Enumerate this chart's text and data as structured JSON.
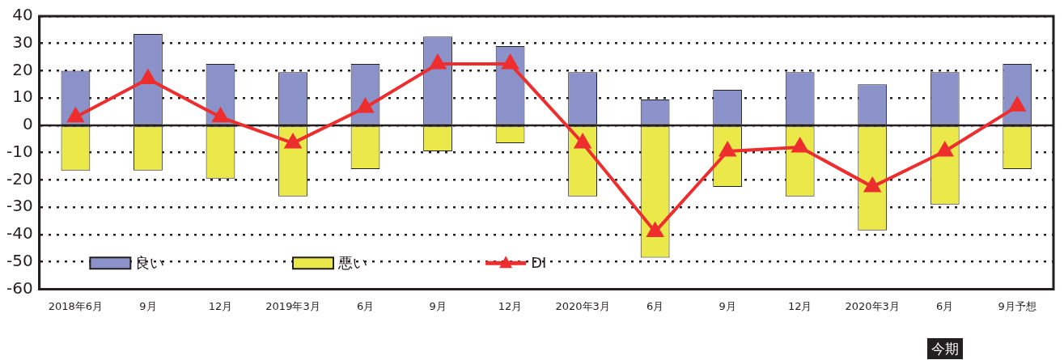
{
  "chart_data": {
    "type": "bar",
    "stacked": true,
    "categories": [
      "2018年6月",
      "9月",
      "12月",
      "2019年3月",
      "6月",
      "9月",
      "12月",
      "2020年3月",
      "6月",
      "9月",
      "12月",
      "2020年3月",
      "6月",
      "9月予想"
    ],
    "series": [
      {
        "name": "良い",
        "color": "#8b92c9",
        "values": [
          20,
          33.5,
          22.5,
          19.5,
          22.5,
          32.5,
          29,
          19.5,
          9.5,
          13,
          19.5,
          15,
          19.5,
          22.5
        ]
      },
      {
        "name": "悪い",
        "color": "#ebe84a",
        "values": [
          -16.5,
          -16.5,
          -19.5,
          -26,
          -16,
          -9.5,
          -6.5,
          -26,
          -48.5,
          -22.5,
          -26,
          -38.5,
          -29,
          -16
        ]
      },
      {
        "name": "DI",
        "type": "line",
        "color": "#ee2e2e",
        "marker": "triangle",
        "values": [
          3,
          17,
          3,
          -6.5,
          6.5,
          22.5,
          22.5,
          -6.5,
          -39,
          -9.5,
          -8,
          -22.5,
          -9.5,
          7
        ]
      }
    ],
    "ylim": [
      -60,
      40
    ],
    "yticks": [
      -60,
      -50,
      -40,
      -30,
      -20,
      -10,
      0,
      10,
      20,
      30,
      40
    ],
    "grid": "y",
    "legend": "bottom",
    "ref_lines": [
      {
        "axis": "y",
        "value": 0,
        "color": "#231f20"
      }
    ],
    "annotations": [
      "今期"
    ]
  }
}
